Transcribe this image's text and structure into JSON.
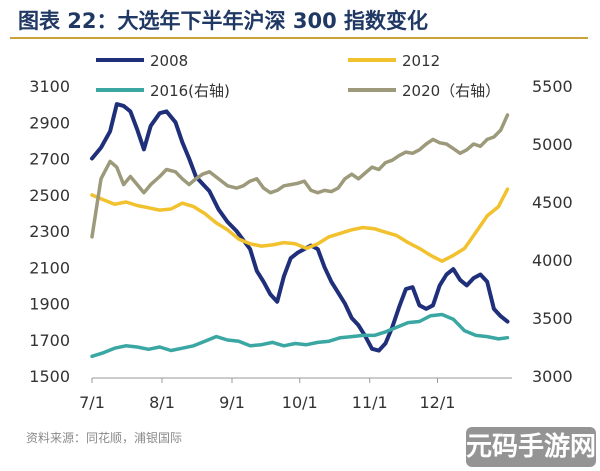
{
  "title": "图表 22：大选年下半年沪深 300 指数变化",
  "source": "资料来源：同花顺，浦银国际",
  "watermark": "元码手游网",
  "colors": {
    "s2008": "#1f2f7a",
    "s2012": "#f2c12e",
    "s2016": "#3aa7a3",
    "s2020": "#9c9a7a",
    "title": "#1f3864",
    "rule": "#c9a33a"
  },
  "chart_data": {
    "type": "line",
    "grid": false,
    "legend_position": "top",
    "x_ticks": [
      "7/1",
      "8/1",
      "9/1",
      "10/1",
      "11/1",
      "12/1"
    ],
    "xlim": [
      0,
      186
    ],
    "left_axis": {
      "ticks": [
        1500,
        1700,
        1900,
        2100,
        2300,
        2500,
        2700,
        2900,
        3100
      ],
      "range": [
        1500,
        3100
      ]
    },
    "right_axis": {
      "ticks": [
        3000,
        3500,
        4000,
        4500,
        5000,
        5500
      ],
      "range": [
        3000,
        5500
      ]
    },
    "series": [
      {
        "name": "2008",
        "axis": "left",
        "color": "#1f2f7a",
        "points": [
          [
            0,
            2700
          ],
          [
            4,
            2760
          ],
          [
            8,
            2850
          ],
          [
            11,
            3000
          ],
          [
            14,
            2990
          ],
          [
            17,
            2960
          ],
          [
            20,
            2860
          ],
          [
            23,
            2750
          ],
          [
            26,
            2880
          ],
          [
            30,
            2950
          ],
          [
            33,
            2960
          ],
          [
            37,
            2900
          ],
          [
            40,
            2790
          ],
          [
            43,
            2700
          ],
          [
            46,
            2600
          ],
          [
            49,
            2560
          ],
          [
            52,
            2520
          ],
          [
            56,
            2420
          ],
          [
            60,
            2350
          ],
          [
            64,
            2300
          ],
          [
            67,
            2250
          ],
          [
            70,
            2200
          ],
          [
            73,
            2080
          ],
          [
            76,
            2020
          ],
          [
            79,
            1950
          ],
          [
            82,
            1910
          ],
          [
            85,
            2050
          ],
          [
            88,
            2150
          ],
          [
            91,
            2180
          ],
          [
            94,
            2200
          ],
          [
            97,
            2220
          ],
          [
            100,
            2200
          ],
          [
            103,
            2100
          ],
          [
            106,
            2020
          ],
          [
            109,
            1960
          ],
          [
            112,
            1900
          ],
          [
            115,
            1820
          ],
          [
            118,
            1780
          ],
          [
            121,
            1720
          ],
          [
            124,
            1650
          ],
          [
            127,
            1640
          ],
          [
            130,
            1680
          ],
          [
            133,
            1770
          ],
          [
            136,
            1880
          ],
          [
            139,
            1980
          ],
          [
            142,
            1990
          ],
          [
            145,
            1890
          ],
          [
            148,
            1870
          ],
          [
            151,
            1890
          ],
          [
            154,
            2000
          ],
          [
            157,
            2060
          ],
          [
            160,
            2090
          ],
          [
            163,
            2030
          ],
          [
            166,
            2000
          ],
          [
            169,
            2040
          ],
          [
            172,
            2060
          ],
          [
            175,
            2020
          ],
          [
            178,
            1870
          ],
          [
            181,
            1830
          ],
          [
            184,
            1800
          ]
        ]
      },
      {
        "name": "2012",
        "axis": "right",
        "color": "#f2c12e",
        "points": [
          [
            0,
            4560
          ],
          [
            5,
            4520
          ],
          [
            10,
            4480
          ],
          [
            15,
            4500
          ],
          [
            20,
            4470
          ],
          [
            25,
            4450
          ],
          [
            30,
            4430
          ],
          [
            35,
            4440
          ],
          [
            40,
            4490
          ],
          [
            45,
            4460
          ],
          [
            50,
            4400
          ],
          [
            55,
            4320
          ],
          [
            60,
            4260
          ],
          [
            65,
            4180
          ],
          [
            70,
            4140
          ],
          [
            75,
            4120
          ],
          [
            80,
            4130
          ],
          [
            85,
            4150
          ],
          [
            90,
            4140
          ],
          [
            95,
            4100
          ],
          [
            100,
            4140
          ],
          [
            105,
            4200
          ],
          [
            110,
            4230
          ],
          [
            115,
            4260
          ],
          [
            120,
            4280
          ],
          [
            125,
            4270
          ],
          [
            130,
            4240
          ],
          [
            135,
            4210
          ],
          [
            140,
            4150
          ],
          [
            145,
            4100
          ],
          [
            150,
            4040
          ],
          [
            155,
            3990
          ],
          [
            160,
            4040
          ],
          [
            165,
            4100
          ],
          [
            170,
            4240
          ],
          [
            175,
            4380
          ],
          [
            180,
            4460
          ],
          [
            184,
            4610
          ]
        ]
      },
      {
        "name": "2016(右轴)",
        "axis": "right",
        "color": "#3aa7a3",
        "points": [
          [
            0,
            3170
          ],
          [
            5,
            3200
          ],
          [
            10,
            3240
          ],
          [
            15,
            3260
          ],
          [
            20,
            3250
          ],
          [
            25,
            3230
          ],
          [
            30,
            3250
          ],
          [
            35,
            3220
          ],
          [
            40,
            3240
          ],
          [
            45,
            3260
          ],
          [
            50,
            3300
          ],
          [
            55,
            3340
          ],
          [
            60,
            3310
          ],
          [
            65,
            3300
          ],
          [
            70,
            3260
          ],
          [
            75,
            3270
          ],
          [
            80,
            3290
          ],
          [
            85,
            3260
          ],
          [
            90,
            3280
          ],
          [
            95,
            3270
          ],
          [
            100,
            3290
          ],
          [
            105,
            3300
          ],
          [
            110,
            3330
          ],
          [
            115,
            3340
          ],
          [
            120,
            3350
          ],
          [
            125,
            3350
          ],
          [
            130,
            3380
          ],
          [
            135,
            3420
          ],
          [
            140,
            3460
          ],
          [
            145,
            3470
          ],
          [
            150,
            3520
          ],
          [
            155,
            3530
          ],
          [
            160,
            3490
          ],
          [
            165,
            3390
          ],
          [
            170,
            3350
          ],
          [
            175,
            3340
          ],
          [
            180,
            3320
          ],
          [
            184,
            3330
          ]
        ]
      },
      {
        "name": "2020（右轴）",
        "axis": "right",
        "color": "#9c9a7a",
        "points": [
          [
            0,
            4200
          ],
          [
            4,
            4700
          ],
          [
            8,
            4850
          ],
          [
            11,
            4800
          ],
          [
            14,
            4650
          ],
          [
            17,
            4720
          ],
          [
            20,
            4650
          ],
          [
            23,
            4580
          ],
          [
            26,
            4650
          ],
          [
            30,
            4720
          ],
          [
            33,
            4780
          ],
          [
            37,
            4760
          ],
          [
            40,
            4700
          ],
          [
            43,
            4650
          ],
          [
            46,
            4700
          ],
          [
            49,
            4740
          ],
          [
            52,
            4760
          ],
          [
            56,
            4700
          ],
          [
            60,
            4640
          ],
          [
            64,
            4620
          ],
          [
            67,
            4640
          ],
          [
            70,
            4680
          ],
          [
            73,
            4700
          ],
          [
            76,
            4620
          ],
          [
            79,
            4580
          ],
          [
            82,
            4600
          ],
          [
            85,
            4640
          ],
          [
            88,
            4650
          ],
          [
            91,
            4660
          ],
          [
            94,
            4680
          ],
          [
            97,
            4600
          ],
          [
            100,
            4580
          ],
          [
            103,
            4600
          ],
          [
            106,
            4590
          ],
          [
            109,
            4620
          ],
          [
            112,
            4700
          ],
          [
            115,
            4740
          ],
          [
            118,
            4700
          ],
          [
            121,
            4750
          ],
          [
            124,
            4800
          ],
          [
            127,
            4780
          ],
          [
            130,
            4840
          ],
          [
            133,
            4860
          ],
          [
            136,
            4900
          ],
          [
            139,
            4930
          ],
          [
            142,
            4920
          ],
          [
            145,
            4950
          ],
          [
            148,
            5000
          ],
          [
            151,
            5040
          ],
          [
            154,
            5010
          ],
          [
            157,
            5000
          ],
          [
            160,
            4960
          ],
          [
            163,
            4920
          ],
          [
            166,
            4950
          ],
          [
            169,
            5000
          ],
          [
            172,
            4980
          ],
          [
            175,
            5040
          ],
          [
            178,
            5060
          ],
          [
            181,
            5120
          ],
          [
            184,
            5250
          ]
        ]
      }
    ]
  }
}
